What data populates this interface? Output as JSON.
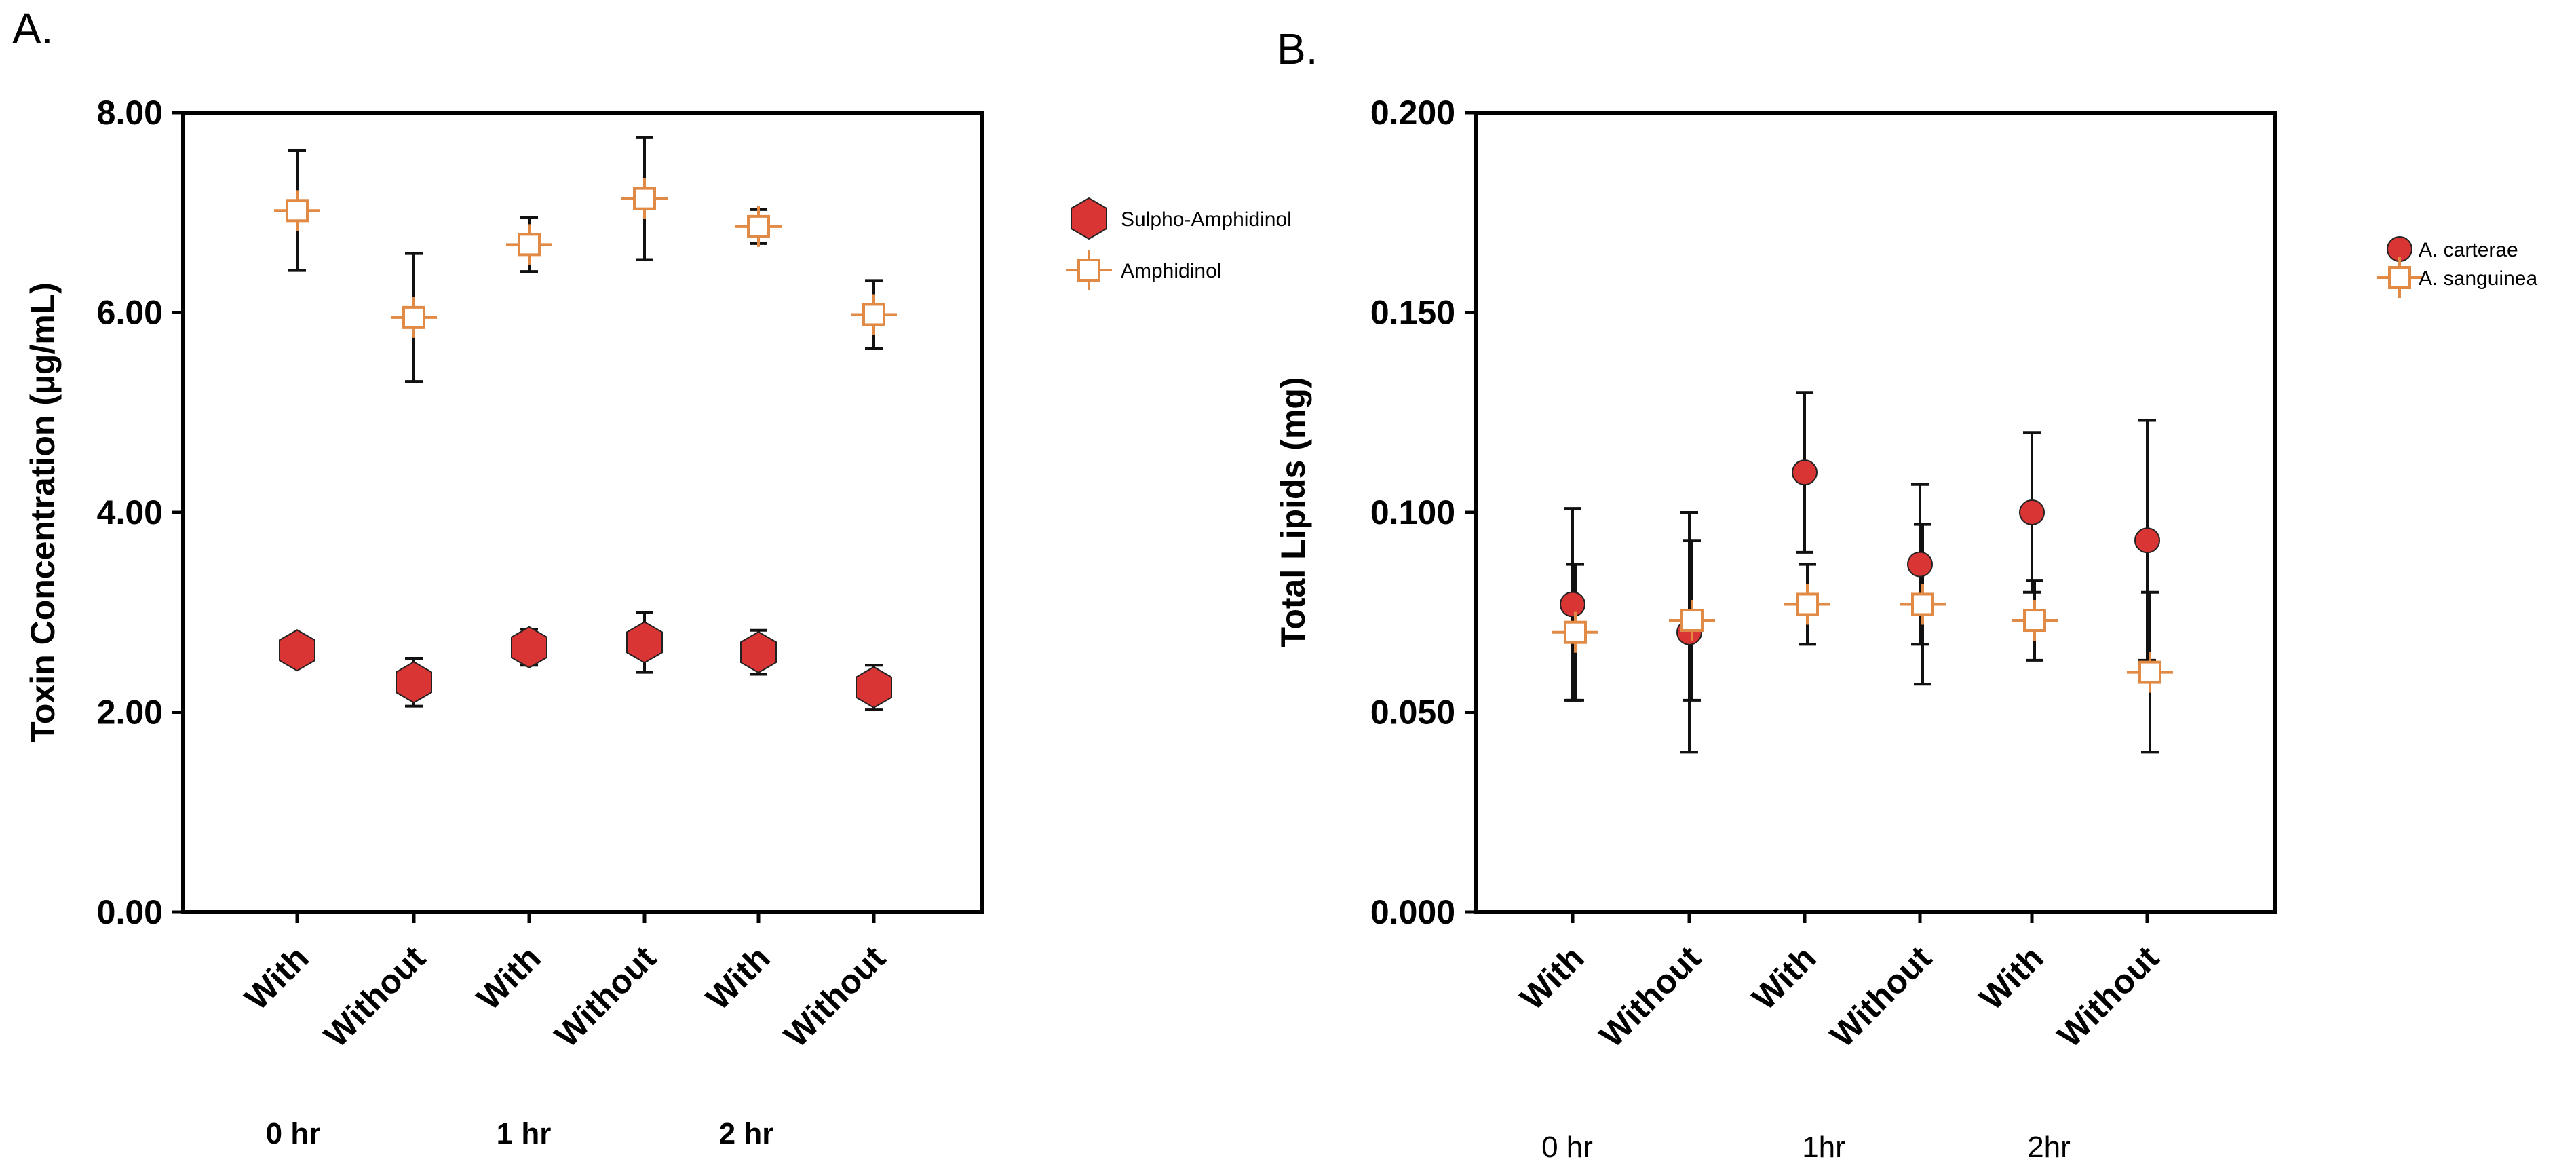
{
  "chart_data": [
    {
      "panel_label": "A.",
      "type": "scatter",
      "ylabel": "Toxin Concentration (µg/mL)",
      "ylim": [
        0,
        8
      ],
      "yticks": [
        "0.00",
        "2.00",
        "4.00",
        "6.00",
        "8.00"
      ],
      "ytick_values": [
        0,
        2,
        4,
        6,
        8
      ],
      "categories": [
        "With",
        "Without",
        "With",
        "Without",
        "With",
        "Without"
      ],
      "groups": [
        {
          "label": "0 hr",
          "category_indices": [
            0,
            1
          ]
        },
        {
          "label": "1 hr",
          "category_indices": [
            2,
            3
          ]
        },
        {
          "label": "2 hr",
          "category_indices": [
            4,
            5
          ]
        }
      ],
      "series": [
        {
          "name": "Sulpho-Amphidinol",
          "marker": "hexagon",
          "color": "#d93535",
          "values": [
            2.62,
            2.3,
            2.65,
            2.7,
            2.6,
            2.25
          ],
          "errors": [
            0,
            0.24,
            0.18,
            0.3,
            0.22,
            0.22
          ]
        },
        {
          "name": "Amphidinol",
          "marker": "open-square",
          "color": "#e08a45",
          "values": [
            7.02,
            5.95,
            6.68,
            7.14,
            6.86,
            5.98
          ],
          "errors": [
            0.6,
            0.64,
            0.27,
            0.61,
            0.17,
            0.34
          ]
        }
      ]
    },
    {
      "panel_label": "B.",
      "type": "scatter",
      "ylabel": "Total Lipids (mg)",
      "ylim": [
        0,
        0.2
      ],
      "yticks": [
        "0.000",
        "0.050",
        "0.100",
        "0.150",
        "0.200"
      ],
      "ytick_values": [
        0,
        0.05,
        0.1,
        0.15,
        0.2
      ],
      "categories": [
        "With",
        "Without",
        "With",
        "Without",
        "With",
        "Without"
      ],
      "groups": [
        {
          "label": "0 hr",
          "category_indices": [
            0,
            1
          ]
        },
        {
          "label": "1hr",
          "category_indices": [
            2,
            3
          ]
        },
        {
          "label": "2hr",
          "category_indices": [
            4,
            5
          ]
        }
      ],
      "series": [
        {
          "name": "A. carterae",
          "marker": "circle",
          "color": "#d93535",
          "values": [
            0.077,
            0.07,
            0.11,
            0.087,
            0.1,
            0.093
          ],
          "errors": [
            0.024,
            0.03,
            0.02,
            0.02,
            0.02,
            0.03
          ]
        },
        {
          "name": "A. sanguinea",
          "marker": "open-square",
          "color": "#e08a45",
          "values": [
            0.07,
            0.073,
            0.077,
            0.077,
            0.073,
            0.06
          ],
          "errors": [
            0.017,
            0.02,
            0.01,
            0.02,
            0.01,
            0.02
          ]
        }
      ]
    }
  ]
}
